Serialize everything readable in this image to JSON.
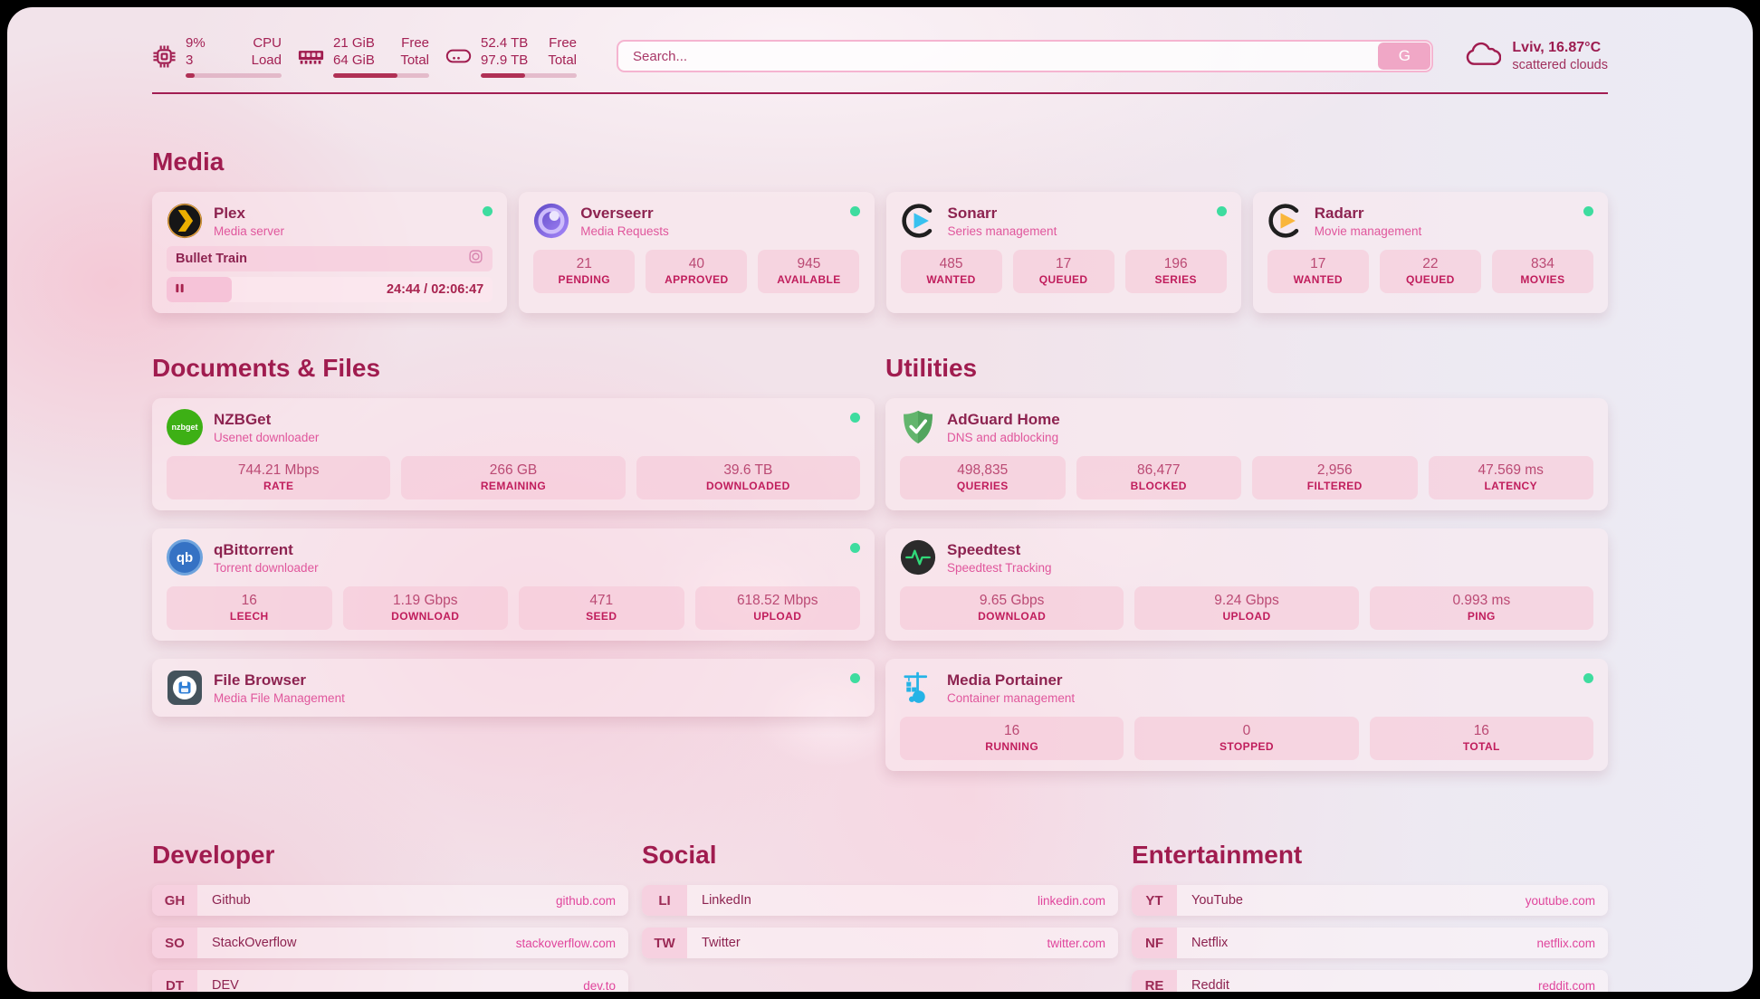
{
  "theme": {
    "primary": "#a01c4f",
    "subtitle_pink": "#e0569c",
    "stat_value": "#bb4a74",
    "stat_label": "#c01d5c",
    "link_pink": "#e0459c",
    "status_green": "#3edc9f",
    "search_button_pink": "#f0a7c6"
  },
  "topbar": {
    "cpu": {
      "icon": "cpu-icon",
      "rows": [
        {
          "value": "9%",
          "label": "CPU"
        },
        {
          "value": "3",
          "label": "Load"
        }
      ],
      "progress_pct": 9
    },
    "memory": {
      "icon": "memory-icon",
      "rows": [
        {
          "value": "21 GiB",
          "label": "Free"
        },
        {
          "value": "64 GiB",
          "label": "Total"
        }
      ],
      "progress_pct": 67
    },
    "disk": {
      "icon": "disk-icon",
      "rows": [
        {
          "value": "52.4 TB",
          "label": "Free"
        },
        {
          "value": "97.9 TB",
          "label": "Total"
        }
      ],
      "progress_pct": 46
    },
    "search": {
      "placeholder": "Search...",
      "button": "G"
    },
    "weather": {
      "icon": "cloud-icon",
      "line1": "Lviv, 16.87°C",
      "line2": "scattered clouds"
    }
  },
  "media": {
    "heading": "Media",
    "plex": {
      "title": "Plex",
      "subtitle": "Media server",
      "online": true,
      "now_playing": {
        "title": "Bullet Train",
        "state": "paused",
        "time_display": "24:44 / 02:06:47",
        "progress_pct": 20
      }
    },
    "overseerr": {
      "title": "Overseerr",
      "subtitle": "Media Requests",
      "online": true,
      "stats": [
        {
          "value": "21",
          "label": "PENDING"
        },
        {
          "value": "40",
          "label": "APPROVED"
        },
        {
          "value": "945",
          "label": "AVAILABLE"
        }
      ]
    },
    "sonarr": {
      "title": "Sonarr",
      "subtitle": "Series management",
      "online": true,
      "stats": [
        {
          "value": "485",
          "label": "WANTED"
        },
        {
          "value": "17",
          "label": "QUEUED"
        },
        {
          "value": "196",
          "label": "SERIES"
        }
      ]
    },
    "radarr": {
      "title": "Radarr",
      "subtitle": "Movie management",
      "online": true,
      "stats": [
        {
          "value": "17",
          "label": "WANTED"
        },
        {
          "value": "22",
          "label": "QUEUED"
        },
        {
          "value": "834",
          "label": "MOVIES"
        }
      ]
    }
  },
  "documents": {
    "heading": "Documents & Files",
    "nzbget": {
      "title": "NZBGet",
      "subtitle": "Usenet downloader",
      "online": true,
      "stats": [
        {
          "value": "744.21 Mbps",
          "label": "RATE"
        },
        {
          "value": "266 GB",
          "label": "REMAINING"
        },
        {
          "value": "39.6 TB",
          "label": "DOWNLOADED"
        }
      ]
    },
    "qbittorrent": {
      "title": "qBittorrent",
      "subtitle": "Torrent downloader",
      "online": true,
      "stats": [
        {
          "value": "16",
          "label": "LEECH"
        },
        {
          "value": "1.19 Gbps",
          "label": "DOWNLOAD"
        },
        {
          "value": "471",
          "label": "SEED"
        },
        {
          "value": "618.52 Mbps",
          "label": "UPLOAD"
        }
      ]
    },
    "filebrowser": {
      "title": "File Browser",
      "subtitle": "Media File Management",
      "online": true
    }
  },
  "utilities": {
    "heading": "Utilities",
    "adguard": {
      "title": "AdGuard Home",
      "subtitle": "DNS and adblocking",
      "online": false,
      "stats": [
        {
          "value": "498,835",
          "label": "QUERIES"
        },
        {
          "value": "86,477",
          "label": "BLOCKED"
        },
        {
          "value": "2,956",
          "label": "FILTERED"
        },
        {
          "value": "47.569 ms",
          "label": "LATENCY"
        }
      ]
    },
    "speedtest": {
      "title": "Speedtest",
      "subtitle": "Speedtest Tracking",
      "online": false,
      "stats": [
        {
          "value": "9.65 Gbps",
          "label": "DOWNLOAD"
        },
        {
          "value": "9.24 Gbps",
          "label": "UPLOAD"
        },
        {
          "value": "0.993 ms",
          "label": "PING"
        }
      ]
    },
    "portainer": {
      "title": "Media Portainer",
      "subtitle": "Container management",
      "online": true,
      "stats": [
        {
          "value": "16",
          "label": "RUNNING"
        },
        {
          "value": "0",
          "label": "STOPPED"
        },
        {
          "value": "16",
          "label": "TOTAL"
        }
      ]
    }
  },
  "bookmarks": {
    "developer": {
      "heading": "Developer",
      "items": [
        {
          "abbr": "GH",
          "name": "Github",
          "url": "github.com"
        },
        {
          "abbr": "SO",
          "name": "StackOverflow",
          "url": "stackoverflow.com"
        },
        {
          "abbr": "DT",
          "name": "DEV",
          "url": "dev.to"
        }
      ]
    },
    "social": {
      "heading": "Social",
      "items": [
        {
          "abbr": "LI",
          "name": "LinkedIn",
          "url": "linkedin.com"
        },
        {
          "abbr": "TW",
          "name": "Twitter",
          "url": "twitter.com"
        }
      ]
    },
    "entertainment": {
      "heading": "Entertainment",
      "items": [
        {
          "abbr": "YT",
          "name": "YouTube",
          "url": "youtube.com"
        },
        {
          "abbr": "NF",
          "name": "Netflix",
          "url": "netflix.com"
        },
        {
          "abbr": "RE",
          "name": "Reddit",
          "url": "reddit.com"
        }
      ]
    }
  }
}
